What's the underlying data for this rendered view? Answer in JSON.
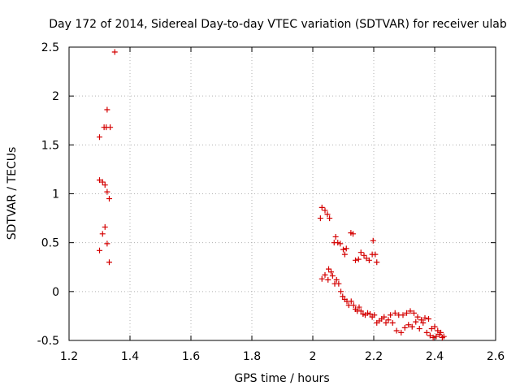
{
  "chart_data": {
    "type": "scatter",
    "title": "Day 172 of 2014, Sidereal Day-to-day VTEC variation (SDTVAR) for receiver ulab",
    "xlabel": "GPS time / hours",
    "ylabel": "SDTVAR / TECUs",
    "xlim": [
      1.2,
      2.6
    ],
    "ylim": [
      -0.5,
      2.5
    ],
    "xticks": [
      "1.2",
      "1.4",
      "1.6",
      "1.8",
      "2",
      "2.2",
      "2.4",
      "2.6"
    ],
    "yticks": [
      "-0.5",
      "0",
      "0.5",
      "1",
      "1.5",
      "2",
      "2.5"
    ],
    "grid": true,
    "marker": "+",
    "color": "#d40000",
    "series": [
      {
        "name": "SDTVAR",
        "points": [
          [
            1.35,
            2.45
          ],
          [
            1.325,
            1.86
          ],
          [
            1.315,
            1.68
          ],
          [
            1.322,
            1.68
          ],
          [
            1.335,
            1.68
          ],
          [
            1.3,
            1.58
          ],
          [
            1.3,
            1.14
          ],
          [
            1.31,
            1.12
          ],
          [
            1.318,
            1.09
          ],
          [
            1.325,
            1.02
          ],
          [
            1.332,
            0.95
          ],
          [
            1.318,
            0.66
          ],
          [
            1.31,
            0.59
          ],
          [
            1.325,
            0.49
          ],
          [
            1.3,
            0.42
          ],
          [
            1.332,
            0.3
          ],
          [
            2.03,
            0.86
          ],
          [
            2.04,
            0.83
          ],
          [
            2.048,
            0.79
          ],
          [
            2.055,
            0.75
          ],
          [
            2.025,
            0.75
          ],
          [
            2.075,
            0.56
          ],
          [
            2.07,
            0.5
          ],
          [
            2.082,
            0.5
          ],
          [
            2.09,
            0.49
          ],
          [
            2.1,
            0.43
          ],
          [
            2.11,
            0.44
          ],
          [
            2.105,
            0.38
          ],
          [
            2.125,
            0.6
          ],
          [
            2.132,
            0.59
          ],
          [
            2.14,
            0.32
          ],
          [
            2.15,
            0.33
          ],
          [
            2.158,
            0.4
          ],
          [
            2.168,
            0.37
          ],
          [
            2.176,
            0.34
          ],
          [
            2.185,
            0.32
          ],
          [
            2.195,
            0.38
          ],
          [
            2.198,
            0.52
          ],
          [
            2.205,
            0.38
          ],
          [
            2.21,
            0.3
          ],
          [
            2.03,
            0.13
          ],
          [
            2.04,
            0.17
          ],
          [
            2.05,
            0.12
          ],
          [
            2.052,
            0.23
          ],
          [
            2.06,
            0.2
          ],
          [
            2.065,
            0.16
          ],
          [
            2.072,
            0.08
          ],
          [
            2.078,
            0.12
          ],
          [
            2.085,
            0.08
          ],
          [
            2.092,
            0.0
          ],
          [
            2.098,
            -0.05
          ],
          [
            2.105,
            -0.08
          ],
          [
            2.112,
            -0.1
          ],
          [
            2.118,
            -0.14
          ],
          [
            2.126,
            -0.1
          ],
          [
            2.134,
            -0.14
          ],
          [
            2.14,
            -0.18
          ],
          [
            2.146,
            -0.2
          ],
          [
            2.152,
            -0.16
          ],
          [
            2.158,
            -0.2
          ],
          [
            2.165,
            -0.23
          ],
          [
            2.172,
            -0.24
          ],
          [
            2.18,
            -0.22
          ],
          [
            2.188,
            -0.23
          ],
          [
            2.195,
            -0.26
          ],
          [
            2.202,
            -0.24
          ],
          [
            2.21,
            -0.32
          ],
          [
            2.218,
            -0.3
          ],
          [
            2.226,
            -0.28
          ],
          [
            2.234,
            -0.26
          ],
          [
            2.24,
            -0.32
          ],
          [
            2.248,
            -0.29
          ],
          [
            2.255,
            -0.24
          ],
          [
            2.262,
            -0.32
          ],
          [
            2.27,
            -0.22
          ],
          [
            2.275,
            -0.4
          ],
          [
            2.282,
            -0.24
          ],
          [
            2.29,
            -0.42
          ],
          [
            2.296,
            -0.24
          ],
          [
            2.302,
            -0.37
          ],
          [
            2.308,
            -0.22
          ],
          [
            2.314,
            -0.34
          ],
          [
            2.32,
            -0.2
          ],
          [
            2.326,
            -0.36
          ],
          [
            2.332,
            -0.22
          ],
          [
            2.338,
            -0.31
          ],
          [
            2.344,
            -0.26
          ],
          [
            2.35,
            -0.38
          ],
          [
            2.356,
            -0.29
          ],
          [
            2.362,
            -0.32
          ],
          [
            2.368,
            -0.27
          ],
          [
            2.374,
            -0.42
          ],
          [
            2.38,
            -0.28
          ],
          [
            2.385,
            -0.45
          ],
          [
            2.39,
            -0.38
          ],
          [
            2.395,
            -0.47
          ],
          [
            2.4,
            -0.36
          ],
          [
            2.405,
            -0.46
          ],
          [
            2.41,
            -0.4
          ],
          [
            2.415,
            -0.44
          ],
          [
            2.42,
            -0.42
          ],
          [
            2.425,
            -0.47
          ],
          [
            2.43,
            -0.46
          ]
        ]
      }
    ]
  }
}
